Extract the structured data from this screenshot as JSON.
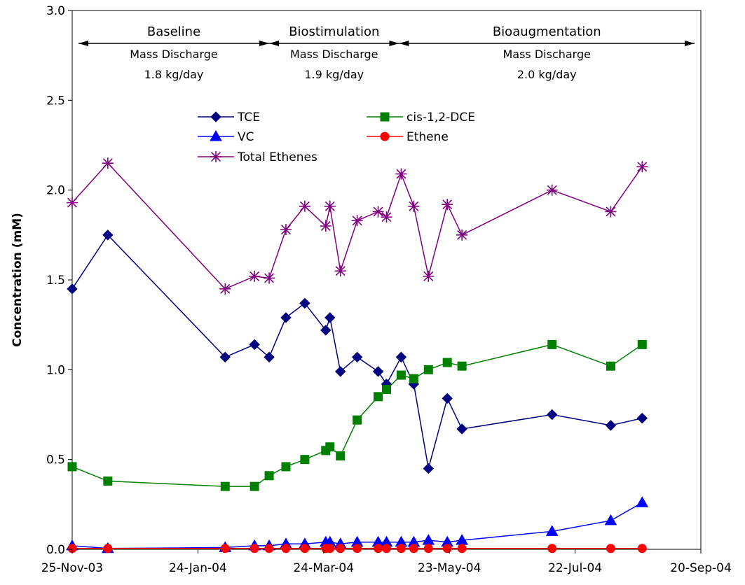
{
  "chart_data": {
    "type": "line",
    "ylabel": "Concentration (mM)",
    "ylim": [
      0,
      3.0
    ],
    "y_ticks": [
      "0.0",
      "0.5",
      "1.0",
      "1.5",
      "2.0",
      "2.5",
      "3.0"
    ],
    "xlim": [
      "2003-11-25",
      "2004-09-20"
    ],
    "x_ticks": [
      "25-Nov-03",
      "24-Jan-04",
      "24-Mar-04",
      "23-May-04",
      "22-Jul-04",
      "20-Sep-04"
    ],
    "phases": [
      {
        "name": "Baseline",
        "label": "Mass Discharge",
        "value": "1.8 kg/day",
        "start": "2003-11-28",
        "end": "2004-02-27"
      },
      {
        "name": "Biostimulation",
        "label": "Mass Discharge",
        "value": "1.9 kg/day",
        "start": "2004-02-27",
        "end": "2004-04-29"
      },
      {
        "name": "Bioaugmentation",
        "label": "Mass Discharge",
        "value": "2.0 kg/day",
        "start": "2004-04-29",
        "end": "2004-09-17"
      }
    ],
    "series": [
      {
        "name": "TCE",
        "color": "#000080",
        "marker": "diamond",
        "points": [
          [
            "2003-11-25",
            1.45
          ],
          [
            "2003-12-12",
            1.75
          ],
          [
            "2004-02-06",
            1.07
          ],
          [
            "2004-02-20",
            1.14
          ],
          [
            "2004-02-27",
            1.07
          ],
          [
            "2004-03-06",
            1.29
          ],
          [
            "2004-03-15",
            1.37
          ],
          [
            "2004-03-25",
            1.22
          ],
          [
            "2004-03-27",
            1.29
          ],
          [
            "2004-04-01",
            0.99
          ],
          [
            "2004-04-09",
            1.07
          ],
          [
            "2004-04-19",
            0.99
          ],
          [
            "2004-04-23",
            0.92
          ],
          [
            "2004-04-30",
            1.07
          ],
          [
            "2004-05-06",
            0.92
          ],
          [
            "2004-05-13",
            0.45
          ],
          [
            "2004-05-22",
            0.84
          ],
          [
            "2004-05-29",
            0.67
          ],
          [
            "2004-07-11",
            0.75
          ],
          [
            "2004-08-08",
            0.69
          ],
          [
            "2004-08-23",
            0.73
          ]
        ]
      },
      {
        "name": "cis-1,2-DCE",
        "color": "#008000",
        "marker": "square",
        "points": [
          [
            "2003-11-25",
            0.46
          ],
          [
            "2003-12-12",
            0.38
          ],
          [
            "2004-02-06",
            0.35
          ],
          [
            "2004-02-20",
            0.35
          ],
          [
            "2004-02-27",
            0.41
          ],
          [
            "2004-03-06",
            0.46
          ],
          [
            "2004-03-15",
            0.5
          ],
          [
            "2004-03-25",
            0.55
          ],
          [
            "2004-03-27",
            0.57
          ],
          [
            "2004-04-01",
            0.52
          ],
          [
            "2004-04-09",
            0.72
          ],
          [
            "2004-04-19",
            0.85
          ],
          [
            "2004-04-23",
            0.89
          ],
          [
            "2004-04-30",
            0.97
          ],
          [
            "2004-05-06",
            0.95
          ],
          [
            "2004-05-13",
            1.0
          ],
          [
            "2004-05-22",
            1.04
          ],
          [
            "2004-05-29",
            1.02
          ],
          [
            "2004-07-11",
            1.14
          ],
          [
            "2004-08-08",
            1.02
          ],
          [
            "2004-08-23",
            1.14
          ]
        ]
      },
      {
        "name": "VC",
        "color": "#0000ff",
        "marker": "triangle",
        "points": [
          [
            "2003-11-25",
            0.02
          ],
          [
            "2003-12-12",
            0.005
          ],
          [
            "2004-02-06",
            0.01
          ],
          [
            "2004-02-20",
            0.02
          ],
          [
            "2004-02-27",
            0.02
          ],
          [
            "2004-03-06",
            0.03
          ],
          [
            "2004-03-15",
            0.03
          ],
          [
            "2004-03-25",
            0.04
          ],
          [
            "2004-03-27",
            0.04
          ],
          [
            "2004-04-01",
            0.03
          ],
          [
            "2004-04-09",
            0.04
          ],
          [
            "2004-04-19",
            0.04
          ],
          [
            "2004-04-23",
            0.04
          ],
          [
            "2004-04-30",
            0.04
          ],
          [
            "2004-05-06",
            0.04
          ],
          [
            "2004-05-13",
            0.05
          ],
          [
            "2004-05-22",
            0.04
          ],
          [
            "2004-05-29",
            0.05
          ],
          [
            "2004-07-11",
            0.1
          ],
          [
            "2004-08-08",
            0.16
          ],
          [
            "2004-08-23",
            0.26
          ]
        ]
      },
      {
        "name": "Ethene",
        "color": "#ff0000",
        "marker": "circle",
        "points": [
          [
            "2003-11-25",
            0.005
          ],
          [
            "2003-12-12",
            0.005
          ],
          [
            "2004-02-06",
            0.005
          ],
          [
            "2004-02-20",
            0.005
          ],
          [
            "2004-02-27",
            0.005
          ],
          [
            "2004-03-06",
            0.005
          ],
          [
            "2004-03-15",
            0.005
          ],
          [
            "2004-03-25",
            0.005
          ],
          [
            "2004-03-27",
            0.005
          ],
          [
            "2004-04-01",
            0.005
          ],
          [
            "2004-04-09",
            0.005
          ],
          [
            "2004-04-19",
            0.005
          ],
          [
            "2004-04-23",
            0.005
          ],
          [
            "2004-04-30",
            0.005
          ],
          [
            "2004-05-06",
            0.005
          ],
          [
            "2004-05-13",
            0.005
          ],
          [
            "2004-05-22",
            0.005
          ],
          [
            "2004-05-29",
            0.005
          ],
          [
            "2004-07-11",
            0.005
          ],
          [
            "2004-08-08",
            0.005
          ],
          [
            "2004-08-23",
            0.005
          ]
        ]
      },
      {
        "name": "Total Ethenes",
        "color": "#800080",
        "marker": "star",
        "points": [
          [
            "2003-11-25",
            1.93
          ],
          [
            "2003-12-12",
            2.15
          ],
          [
            "2004-02-06",
            1.45
          ],
          [
            "2004-02-20",
            1.52
          ],
          [
            "2004-02-27",
            1.51
          ],
          [
            "2004-03-06",
            1.78
          ],
          [
            "2004-03-15",
            1.91
          ],
          [
            "2004-03-25",
            1.8
          ],
          [
            "2004-03-27",
            1.91
          ],
          [
            "2004-04-01",
            1.55
          ],
          [
            "2004-04-09",
            1.83
          ],
          [
            "2004-04-19",
            1.88
          ],
          [
            "2004-04-23",
            1.85
          ],
          [
            "2004-04-30",
            2.09
          ],
          [
            "2004-05-06",
            1.91
          ],
          [
            "2004-05-13",
            1.52
          ],
          [
            "2004-05-22",
            1.92
          ],
          [
            "2004-05-29",
            1.75
          ],
          [
            "2004-07-11",
            2.0
          ],
          [
            "2004-08-08",
            1.88
          ],
          [
            "2004-08-23",
            2.13
          ]
        ]
      }
    ],
    "legend": {
      "rows": [
        [
          "TCE",
          "cis-1,2-DCE"
        ],
        [
          "VC",
          "Ethene"
        ],
        [
          "Total Ethenes"
        ]
      ]
    }
  }
}
